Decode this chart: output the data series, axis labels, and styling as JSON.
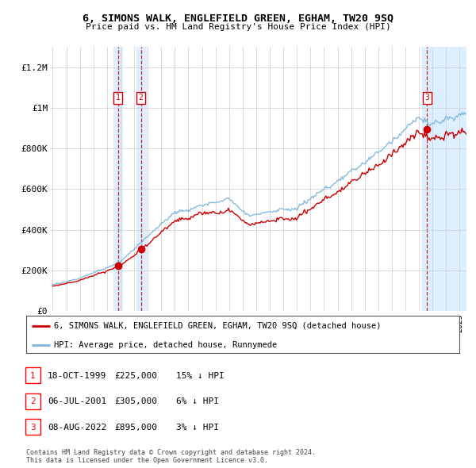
{
  "title": "6, SIMONS WALK, ENGLEFIELD GREEN, EGHAM, TW20 9SQ",
  "subtitle": "Price paid vs. HM Land Registry's House Price Index (HPI)",
  "ylabel_ticks": [
    "£0",
    "£200K",
    "£400K",
    "£600K",
    "£800K",
    "£1M",
    "£1.2M"
  ],
  "ytick_vals": [
    0,
    200000,
    400000,
    600000,
    800000,
    1000000,
    1200000
  ],
  "ylim": [
    0,
    1300000
  ],
  "xlim_start": 1994.8,
  "xlim_end": 2025.5,
  "sale_dates": [
    1999.8,
    2001.5,
    2022.6
  ],
  "sale_prices": [
    225000,
    305000,
    895000
  ],
  "sale_labels": [
    "1",
    "2",
    "3"
  ],
  "legend_entries": [
    "6, SIMONS WALK, ENGLEFIELD GREEN, EGHAM, TW20 9SQ (detached house)",
    "HPI: Average price, detached house, Runnymede"
  ],
  "table_rows": [
    [
      "1",
      "18-OCT-1999",
      "£225,000",
      "15% ↓ HPI"
    ],
    [
      "2",
      "06-JUL-2001",
      "£305,000",
      "6% ↓ HPI"
    ],
    [
      "3",
      "08-AUG-2022",
      "£895,000",
      "3% ↓ HPI"
    ]
  ],
  "footnote": "Contains HM Land Registry data © Crown copyright and database right 2024.\nThis data is licensed under the Open Government Licence v3.0.",
  "hpi_color": "#7ab4d8",
  "sale_line_color": "#cc0000",
  "sale_marker_color": "#cc0000",
  "vline_color": "#cc0000",
  "shade_color": "#ddeeff",
  "background_color": "#ffffff",
  "grid_color": "#cccccc"
}
